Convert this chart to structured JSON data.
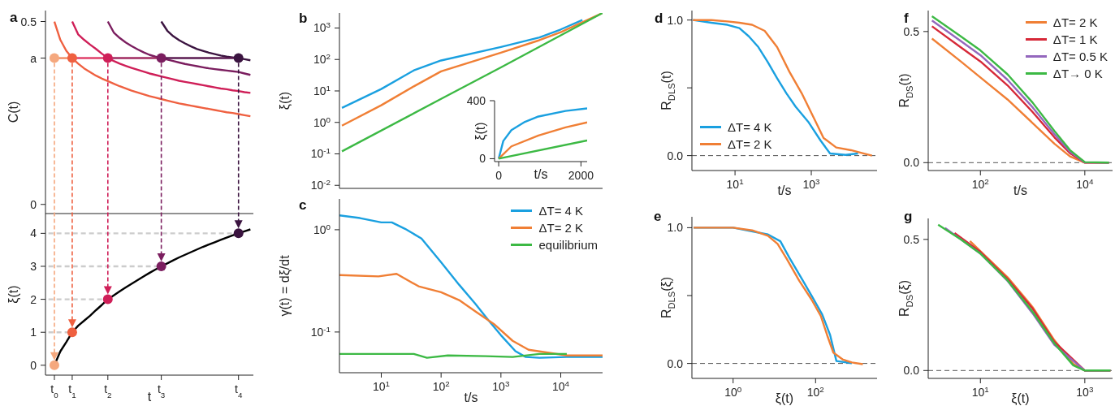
{
  "chart_data": [
    {
      "type": "line",
      "title": "a",
      "ylabel": "C(t)",
      "ylim": [
        -0.025,
        0.53
      ],
      "categories": [
        null,
        null,
        null,
        null,
        null,
        null,
        null,
        null,
        null,
        null,
        null,
        null,
        null,
        null,
        null,
        null,
        null,
        null,
        null,
        null,
        null,
        null,
        null,
        null,
        null,
        null,
        null,
        null,
        null,
        null,
        null,
        null,
        null,
        null,
        null
      ],
      "yticks": [
        0,
        {
          "value": 0.4,
          "label": "a"
        },
        0.5
      ],
      "series": [
        {
          "color": "#ef6040",
          "values": [
            null,
            0.5,
            0.45,
            0.42,
            0.4,
            0.385,
            0.372,
            0.362,
            0.352,
            0.344,
            0.337,
            0.33,
            0.323,
            0.317,
            0.311,
            0.306,
            0.301,
            0.296,
            0.292,
            0.288,
            0.284,
            0.28,
            0.276,
            0.273,
            0.27,
            0.267,
            0.264,
            0.261,
            0.258,
            0.255,
            0.252,
            0.25,
            0.247,
            0.244,
            0.241
          ]
        },
        {
          "color": "#cf1f58",
          "values": [
            null,
            null,
            null,
            null,
            0.5,
            0.465,
            0.45,
            0.437,
            0.425,
            0.412,
            0.4,
            0.392,
            0.385,
            0.379,
            0.373,
            0.368,
            0.363,
            0.358,
            0.354,
            0.35,
            0.346,
            0.342,
            0.338,
            0.335,
            0.332,
            0.329,
            0.326,
            0.323,
            0.32,
            0.317,
            0.315,
            0.312,
            0.31,
            0.307,
            0.305
          ]
        },
        {
          "color": "#7b1e5f",
          "values": [
            null,
            null,
            null,
            null,
            null,
            null,
            null,
            null,
            null,
            null,
            0.5,
            0.47,
            0.455,
            0.443,
            0.433,
            0.424,
            0.416,
            0.409,
            0.404,
            0.4,
            0.396,
            0.392,
            0.388,
            0.384,
            0.381,
            0.378,
            0.375,
            0.372,
            0.37,
            0.368,
            0.366,
            0.364,
            0.362,
            0.358,
            0.354
          ]
        },
        {
          "color": "#3b1440",
          "values": [
            null,
            null,
            null,
            null,
            null,
            null,
            null,
            null,
            null,
            null,
            null,
            null,
            null,
            null,
            null,
            null,
            null,
            null,
            null,
            0.5,
            0.475,
            0.46,
            0.449,
            0.44,
            0.432,
            0.425,
            0.42,
            0.415,
            0.411,
            0.407,
            0.404,
            0.402,
            0.4,
            0.397,
            0.394
          ]
        },
        {
          "color": "#f08a60",
          "values": [
            null,
            0.4,
            0.4,
            0.4,
            0.4,
            null,
            null,
            null,
            null,
            null,
            null,
            null,
            null,
            null,
            null,
            null,
            null,
            null,
            null,
            null,
            null,
            null,
            null,
            null,
            null,
            null,
            null,
            null,
            null,
            null,
            null,
            null,
            null,
            null,
            null
          ]
        },
        {
          "color": "#e0406a",
          "values": [
            null,
            null,
            null,
            null,
            0.4,
            0.4,
            0.4,
            0.4,
            0.4,
            0.4,
            0.4,
            null,
            null,
            null,
            null,
            null,
            null,
            null,
            null,
            null,
            null,
            null,
            null,
            null,
            null,
            null,
            null,
            null,
            null,
            null,
            null,
            null,
            null,
            null,
            null
          ]
        },
        {
          "color": "#a02a60",
          "values": [
            null,
            null,
            null,
            null,
            null,
            null,
            null,
            null,
            null,
            null,
            0.4,
            0.4,
            0.4,
            0.4,
            0.4,
            0.4,
            0.4,
            0.4,
            0.4,
            0.4,
            null,
            null,
            null,
            null,
            null,
            null,
            null,
            null,
            null,
            null,
            null,
            null,
            null,
            null,
            null
          ]
        },
        {
          "color": "#5a1a50",
          "values": [
            null,
            null,
            null,
            null,
            null,
            null,
            null,
            null,
            null,
            null,
            null,
            null,
            null,
            null,
            null,
            null,
            null,
            null,
            null,
            0.4,
            0.4,
            0.4,
            0.4,
            0.4,
            0.4,
            0.4,
            0.4,
            0.4,
            0.4,
            0.4,
            0.4,
            0.4,
            0.4,
            null,
            null
          ]
        },
        {
          "type": "scatter",
          "marker": "circle",
          "values": [
            null,
            0.4,
            null,
            null,
            0.4,
            null,
            null,
            null,
            null,
            null,
            0.4,
            null,
            null,
            null,
            null,
            null,
            null,
            null,
            null,
            0.4,
            null,
            null,
            null,
            null,
            null,
            null,
            null,
            null,
            null,
            null,
            null,
            null,
            0.4,
            null,
            null
          ],
          "colors": [
            null,
            "#f5a87e",
            null,
            null,
            "#ef6040",
            null,
            null,
            null,
            null,
            null,
            "#cf1f58",
            null,
            null,
            null,
            null,
            null,
            null,
            null,
            null,
            "#7b1e5f",
            null,
            null,
            null,
            null,
            null,
            null,
            null,
            null,
            null,
            null,
            null,
            null,
            "#3b1440",
            null,
            null
          ]
        }
      ]
    },
    {
      "type": "line",
      "ylabel": "ξ(t)",
      "xlabel": "t",
      "ylim": [
        -0.3,
        4.6
      ],
      "categories": [
        null,
        "t$_{0}$",
        null,
        null,
        "t$_{1}$",
        null,
        null,
        null,
        null,
        null,
        "t$_{2}$",
        null,
        null,
        null,
        null,
        null,
        null,
        null,
        null,
        "t$_{3}$",
        null,
        null,
        null,
        null,
        null,
        null,
        null,
        null,
        null,
        null,
        null,
        null,
        "t$_{4}$",
        null,
        null
      ],
      "yticks": [
        0,
        1,
        2,
        3,
        4
      ],
      "series": [
        {
          "color": "#cccccc",
          "line_style": "dashed",
          "values": [
            1,
            1,
            1,
            1,
            1,
            null,
            null,
            null,
            null,
            null,
            null,
            null,
            null,
            null,
            null,
            null,
            null,
            null,
            null,
            null,
            null,
            null,
            null,
            null,
            null,
            null,
            null,
            null,
            null,
            null,
            null,
            null,
            null,
            null,
            null
          ]
        },
        {
          "color": "#cccccc",
          "line_style": "dashed",
          "values": [
            2,
            2,
            2,
            2,
            2,
            2,
            2,
            2,
            2,
            2,
            2,
            null,
            null,
            null,
            null,
            null,
            null,
            null,
            null,
            null,
            null,
            null,
            null,
            null,
            null,
            null,
            null,
            null,
            null,
            null,
            null,
            null,
            null,
            null,
            null
          ]
        },
        {
          "color": "#cccccc",
          "line_style": "dashed",
          "values": [
            3,
            3,
            3,
            3,
            3,
            3,
            3,
            3,
            3,
            3,
            3,
            3,
            3,
            3,
            3,
            3,
            3,
            3,
            3,
            3,
            null,
            null,
            null,
            null,
            null,
            null,
            null,
            null,
            null,
            null,
            null,
            null,
            null,
            null,
            null
          ]
        },
        {
          "color": "#cccccc",
          "line_style": "dashed",
          "values": [
            4,
            4,
            4,
            4,
            4,
            4,
            4,
            4,
            4,
            4,
            4,
            4,
            4,
            4,
            4,
            4,
            4,
            4,
            4,
            4,
            4,
            4,
            4,
            4,
            4,
            4,
            4,
            4,
            4,
            4,
            4,
            4,
            4,
            null,
            null
          ]
        },
        {
          "color": "#000000",
          "values": [
            null,
            0,
            0.42,
            0.7,
            1,
            1.2,
            1.35,
            1.5,
            1.67,
            1.83,
            2,
            2.12,
            2.24,
            2.36,
            2.47,
            2.58,
            2.69,
            2.8,
            2.9,
            3,
            3.09,
            3.18,
            3.27,
            3.35,
            3.43,
            3.51,
            3.59,
            3.66,
            3.73,
            3.8,
            3.87,
            3.94,
            4,
            4.06,
            4.12
          ]
        },
        {
          "type": "scatter",
          "marker": "circle",
          "values": [
            null,
            0,
            null,
            null,
            1,
            null,
            null,
            null,
            null,
            null,
            2,
            null,
            null,
            null,
            null,
            null,
            null,
            null,
            null,
            3,
            null,
            null,
            null,
            null,
            null,
            null,
            null,
            null,
            null,
            null,
            null,
            null,
            4,
            null,
            null
          ],
          "colors": [
            null,
            "#f5a87e",
            null,
            null,
            "#ef6040",
            null,
            null,
            null,
            null,
            null,
            "#cf1f58",
            null,
            null,
            null,
            null,
            null,
            null,
            null,
            null,
            "#7b1e5f",
            null,
            null,
            null,
            null,
            null,
            null,
            null,
            null,
            null,
            null,
            null,
            null,
            "#3b1440",
            null,
            null
          ]
        }
      ]
    },
    {
      "type": "line",
      "title": "b",
      "ylabel": "ξ(t)",
      "log": "xy",
      "xlim": [
        2,
        50000
      ],
      "ylim": [
        0.008,
        3000
      ],
      "tick_labels": "y",
      "xticks": [
        10,
        100,
        1000,
        10000
      ],
      "yticks": [
        {
          "value": 0.01,
          "label": "10$^{-2}$"
        },
        {
          "value": 0.1,
          "label": "10$^{-1}$"
        },
        {
          "value": 1,
          "label": "10$^{0}$"
        },
        {
          "value": 10,
          "label": "10$^{1}$"
        },
        {
          "value": 100,
          "label": "10$^{2}$"
        },
        {
          "value": 1000,
          "label": "10$^{3}$"
        }
      ],
      "series": [
        {
          "color": "#1aa0e0",
          "x": [
            2.2,
            10,
            35,
            100,
            1000,
            4400,
            10000,
            23000
          ],
          "values": [
            2.9,
            11.5,
            45,
            93,
            250,
            500,
            900,
            1800
          ]
        },
        {
          "color": "#f07f35",
          "x": [
            2.2,
            10,
            35,
            100,
            1000,
            4400,
            10000,
            50000
          ],
          "values": [
            0.79,
            3.5,
            14,
            42,
            165,
            410,
            740,
            3000
          ]
        },
        {
          "color": "#3cb944",
          "x": [
            2.2,
            100,
            1000,
            50000
          ],
          "values": [
            0.12,
            5.6,
            56,
            3000
          ]
        }
      ]
    },
    {
      "type": "line",
      "ylabel": "ξ(t)",
      "xlabel": "t/s",
      "xlim": [
        -100,
        2150
      ],
      "ylim": [
        -20,
        400
      ],
      "xticks": [
        0,
        2000
      ],
      "yticks": [
        0,
        400
      ],
      "series": [
        {
          "color": "#1aa0e0",
          "x": [
            0,
            112,
            309,
            638,
            967,
            1625,
            2150
          ],
          "values": [
            0,
            122,
            197,
            254,
            291,
            329,
            347
          ]
        },
        {
          "color": "#f07f35",
          "x": [
            0,
            309,
            967,
            1625,
            2150
          ],
          "values": [
            0,
            85,
            160,
            216,
            250
          ]
        },
        {
          "color": "#3cb944",
          "x": [
            0,
            2150
          ],
          "values": [
            0,
            126
          ]
        }
      ]
    },
    {
      "type": "line",
      "title": "c",
      "ylabel": "γ(t) = dξ/dt",
      "xlabel": "t/s",
      "log": "xy",
      "xlim": [
        2,
        50000
      ],
      "ylim": [
        0.04,
        2
      ],
      "legend": "top right",
      "xticks": [
        {
          "value": 10,
          "label": "10$^{1}$"
        },
        {
          "value": 100,
          "label": "10$^{2}$"
        },
        {
          "value": 1000,
          "label": "10$^{3}$"
        },
        {
          "value": 10000,
          "label": "10$^{4}$"
        }
      ],
      "yticks": [
        {
          "value": 0.1,
          "label": "10$^{-1}$"
        },
        {
          "value": 1,
          "label": "10$^{0}$"
        }
      ],
      "series": [
        {
          "name": "ΔT= 4 K",
          "color": "#1aa0e0",
          "x": [
            2,
            4.4,
            10,
            15,
            25,
            47,
            100,
            200,
            370,
            620,
            1000,
            1750,
            2600,
            4400,
            12600,
            50000
          ],
          "values": [
            1.38,
            1.3,
            1.18,
            1.18,
            1.02,
            0.82,
            0.48,
            0.29,
            0.19,
            0.13,
            0.093,
            0.065,
            0.057,
            0.056,
            0.057,
            0.057
          ]
        },
        {
          "name": "ΔT= 2 K",
          "color": "#f07f35",
          "x": [
            2,
            9,
            18,
            42,
            100,
            200,
            370,
            760,
            1570,
            2900,
            12600,
            50000
          ],
          "values": [
            0.36,
            0.35,
            0.37,
            0.28,
            0.245,
            0.205,
            0.16,
            0.12,
            0.082,
            0.067,
            0.059,
            0.059
          ]
        },
        {
          "name": "equilibrium",
          "color": "#3cb944",
          "x": [
            2,
            35,
            58,
            130,
            560,
            1570,
            4400,
            12600
          ],
          "values": [
            0.061,
            0.061,
            0.056,
            0.059,
            0.058,
            0.057,
            0.061,
            0.061
          ]
        }
      ]
    },
    {
      "type": "line",
      "title": "d",
      "ylabel": "R$_{DLS}$(t)",
      "xlabel": "t/s",
      "log": "x",
      "xlim": [
        0.74,
        53000
      ],
      "ylim": [
        -0.11,
        1.07
      ],
      "legend": "bottom left",
      "xticks": [
        {
          "value": 10,
          "label": "10$^{1}$"
        },
        {
          "value": 1000,
          "label": "10$^{3}$"
        }
      ],
      "yticks": [
        {
          "value": 0,
          "label": "0.0"
        },
        {
          "value": 0.5,
          "label": null
        },
        {
          "value": 1,
          "label": "1.0"
        }
      ],
      "ref_lines": [
        {
          "axis": "y",
          "value": 0,
          "color": "#555555",
          "line_style": "dashed"
        }
      ],
      "series": [
        {
          "name": "ΔT= 4 K",
          "color": "#1aa0e0",
          "x": [
            0.79,
            2.4,
            6.3,
            13,
            23,
            41,
            72,
            127,
            222,
            390,
            830,
            1760,
            3100,
            7900,
            16800
          ],
          "values": [
            1,
            0.98,
            0.965,
            0.94,
            0.88,
            0.8,
            0.69,
            0.57,
            0.46,
            0.36,
            0.25,
            0.11,
            0.016,
            0.005,
            0.016
          ]
        },
        {
          "name": "ΔT= 2 K",
          "color": "#f07f35",
          "x": [
            0.79,
            2.4,
            6.3,
            13,
            28,
            60,
            127,
            265,
            560,
            1200,
            2100,
            4500,
            11000,
            23000,
            39000
          ],
          "values": [
            1,
            1,
            0.99,
            0.98,
            0.965,
            0.92,
            0.8,
            0.62,
            0.46,
            0.27,
            0.13,
            0.06,
            0.04,
            0.016,
            0
          ]
        }
      ]
    },
    {
      "type": "line",
      "title": "e",
      "ylabel": "R$_{DLS}$(ξ)",
      "xlabel": "ξ(t)",
      "log": "x",
      "xlim": [
        0.1,
        3100
      ],
      "ylim": [
        -0.11,
        1.08
      ],
      "xticks": [
        {
          "value": 1,
          "label": "10$^{0}$"
        },
        {
          "value": 100,
          "label": "10$^{2}$"
        }
      ],
      "yticks": [
        {
          "value": 0,
          "label": "0.0"
        },
        {
          "value": 0.5,
          "label": null
        },
        {
          "value": 1,
          "label": "1.0"
        }
      ],
      "ref_lines": [
        {
          "axis": "y",
          "value": 0,
          "color": "#555555",
          "line_style": "dashed"
        }
      ],
      "series": [
        {
          "color": "#1aa0e0",
          "x": [
            0.11,
            1,
            7,
            14,
            23,
            47,
            87,
            145,
            225,
            320,
            760
          ],
          "values": [
            1,
            1,
            0.95,
            0.9,
            0.78,
            0.62,
            0.48,
            0.36,
            0.21,
            0.018,
            0.002
          ]
        },
        {
          "color": "#f07f35",
          "x": [
            0.11,
            0.37,
            1,
            2.9,
            7,
            12,
            20,
            40,
            80,
            134,
            190,
            270,
            450,
            760,
            1400
          ],
          "values": [
            1,
            1,
            1,
            0.98,
            0.94,
            0.88,
            0.77,
            0.61,
            0.47,
            0.35,
            0.21,
            0.08,
            0.03,
            0.007,
            -0.005
          ]
        }
      ]
    },
    {
      "type": "line",
      "title": "f",
      "ylabel": "R$_{DS}$(t)",
      "xlabel": "t/s",
      "log": "x",
      "xlim": [
        10,
        34000
      ],
      "ylim": [
        -0.03,
        0.58
      ],
      "legend": "top right",
      "xticks": [
        {
          "value": 100,
          "label": "10$^{2}$"
        },
        {
          "value": 10000,
          "label": "10$^{4}$"
        }
      ],
      "yticks": [
        {
          "value": 0,
          "label": "0.0"
        },
        {
          "value": 0.5,
          "label": "0.5"
        }
      ],
      "ref_lines": [
        {
          "axis": "y",
          "value": 0,
          "color": "#555555",
          "line_style": "dashed"
        }
      ],
      "series": [
        {
          "name": "ΔT= 2 K",
          "color": "#f07f35",
          "x": [
            11.8,
            42,
            100,
            330,
            1000,
            2630,
            5200,
            10000,
            29000
          ],
          "values": [
            0.473,
            0.386,
            0.325,
            0.241,
            0.151,
            0.072,
            0.024,
            0,
            0
          ]
        },
        {
          "name": "ΔT= 1 K",
          "color": "#d62838",
          "x": [
            11.8,
            42,
            100,
            330,
            1000,
            2630,
            5200,
            10000,
            29000
          ],
          "values": [
            0.52,
            0.44,
            0.386,
            0.295,
            0.193,
            0.096,
            0.036,
            0,
            0
          ]
        },
        {
          "name": "ΔT= 0.5 K",
          "color": "#9467bd",
          "x": [
            11.8,
            42,
            100,
            330,
            1000,
            2630,
            5200,
            10000,
            29000
          ],
          "values": [
            0.542,
            0.464,
            0.41,
            0.316,
            0.211,
            0.108,
            0.042,
            0.001,
            0
          ]
        },
        {
          "name": "ΔT→ 0 K",
          "color": "#3cb944",
          "x": [
            11.8,
            42,
            100,
            330,
            1000,
            2630,
            5200,
            10000,
            29000
          ],
          "values": [
            0.558,
            0.482,
            0.428,
            0.337,
            0.229,
            0.12,
            0.048,
            0.002,
            0
          ]
        }
      ]
    },
    {
      "type": "line",
      "title": "g",
      "ylabel": "R$_{DS}$(ξ)",
      "xlabel": "ξ(t)",
      "log": "x",
      "xlim": [
        1,
        3400
      ],
      "ylim": [
        -0.03,
        0.58
      ],
      "xticks": [
        {
          "value": 10,
          "label": "10$^{1}$"
        },
        {
          "value": 1000,
          "label": "10$^{3}$"
        }
      ],
      "yticks": [
        {
          "value": 0,
          "label": "0.0"
        },
        {
          "value": 0.5,
          "label": "0.5"
        }
      ],
      "ref_lines": [
        {
          "axis": "y",
          "value": 0,
          "color": "#555555",
          "line_style": "dashed"
        }
      ],
      "series": [
        {
          "color": "#f07f35",
          "x": [
            6.3,
            33,
            100,
            260,
            600,
            1000,
            3100
          ],
          "values": [
            0.494,
            0.356,
            0.242,
            0.116,
            0.026,
            0,
            0
          ]
        },
        {
          "color": "#d62838",
          "x": [
            3.2,
            10,
            33,
            100,
            260,
            1000,
            3100
          ],
          "values": [
            0.524,
            0.452,
            0.35,
            0.236,
            0.11,
            0,
            0
          ]
        },
        {
          "color": "#9467bd",
          "x": [
            2.1,
            10,
            33,
            100,
            260,
            1000,
            3100
          ],
          "values": [
            0.544,
            0.446,
            0.342,
            0.218,
            0.098,
            0,
            0
          ]
        },
        {
          "color": "#3cb944",
          "x": [
            1.55,
            4.2,
            10,
            33,
            100,
            260,
            600,
            1000,
            3100
          ],
          "values": [
            0.556,
            0.5,
            0.446,
            0.344,
            0.224,
            0.104,
            0.02,
            0,
            0
          ]
        }
      ]
    }
  ]
}
